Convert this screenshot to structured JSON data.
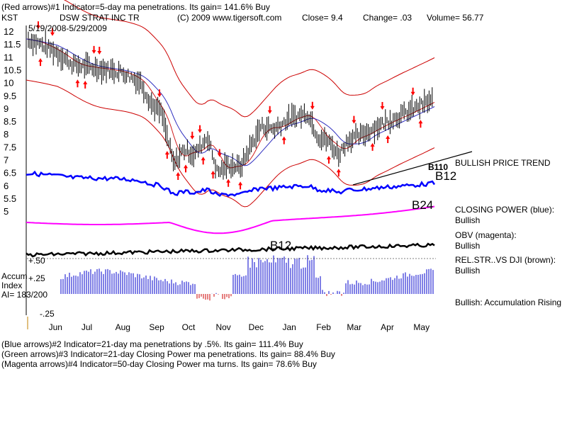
{
  "header": {
    "indicator1": "(Red arrows)#1 Indicator=5-day ma penetrations. Its gain= 141.6% Buy",
    "ticker": "KST",
    "stock": "DSW STRAT INC TR",
    "copyright": "(C) 2009 www.tigersoft.com",
    "close": "Close=  9.4",
    "change": "Change= .03",
    "volume": "Volume= 56.77",
    "date_range": "5/19/2008-5/29/2009"
  },
  "footer": {
    "line2": "(Blue arrows)#2 Indicator=21-day ma penetrations by .5%. Its gain= 111.4% Buy",
    "line3": "(Green arrows)#3 Indicator=21-day Closing Power ma penetrations. Its gain= 88.4% Buy",
    "line4": "(Magenta arrows)#4 Indicator=50-day Closing Power ma turns. Its gain= 78.6% Buy"
  },
  "panel": {
    "accum_title_1": "Accum",
    "accum_title_2": "Index",
    "ai": "AI= 183/200",
    "plus50": "+.50",
    "plus25": "+.25",
    "minus25": "-.25"
  },
  "annotations": {
    "bullish_price_trend": "BULLISH PRICE TREND",
    "closing_power": "CLOSING POWER (blue):",
    "closing_power_val": "Bullish",
    "obv": "OBV (magenta):",
    "obv_val": "Bullish",
    "relstr": "REL.STR..VS DJI (brown):",
    "relstr_val": "Bullish",
    "accum": "Bullish: Accumulation Rising",
    "b12_top": "B12",
    "b24": "B24",
    "b12_bottom": "B12",
    "b_overlap": "B110"
  },
  "colors": {
    "price": "#000000",
    "bands": "#cc0000",
    "ma": "#3030c0",
    "closing_power": "#0000ff",
    "obv": "#ff00ff",
    "relstr": "#000000",
    "accum_bars": "#0000cc",
    "sell_arrow": "#ff0000"
  },
  "chart_data": {
    "type": "line",
    "title": "DSW STRAT INC TR",
    "ylim": [
      4.6,
      12.3
    ],
    "yticks": [
      12,
      11.5,
      11,
      10.5,
      10,
      9.5,
      9,
      8.5,
      8,
      7.5,
      7,
      6.5,
      6,
      5.5,
      5
    ],
    "x_months": [
      "Jun",
      "Jul",
      "Aug",
      "Sep",
      "Oct",
      "Nov",
      "Dec",
      "Jan",
      "Feb",
      "Mar",
      "Apr",
      "May"
    ],
    "x": [
      "2008-05-19",
      "2008-06-01",
      "2008-06-15",
      "2008-07-01",
      "2008-07-15",
      "2008-08-01",
      "2008-08-15",
      "2008-09-01",
      "2008-09-10",
      "2008-09-20",
      "2008-10-01",
      "2008-10-10",
      "2008-10-20",
      "2008-11-01",
      "2008-11-10",
      "2008-11-20",
      "2008-12-01",
      "2008-12-10",
      "2008-12-20",
      "2009-01-01",
      "2009-01-15",
      "2009-02-01",
      "2009-02-10",
      "2009-02-20",
      "2009-03-01",
      "2009-03-10",
      "2009-03-20",
      "2009-04-01",
      "2009-04-15",
      "2009-05-01",
      "2009-05-15",
      "2009-05-29"
    ],
    "series": [
      {
        "values": [
          11.7,
          11.5,
          11.2,
          10.7,
          10.6,
          10.5,
          10.4,
          10.0,
          9.2,
          8.8,
          6.8,
          7.4,
          7.2,
          7.9,
          6.5,
          6.8,
          6.7,
          7.5,
          8.3,
          8.2,
          8.6,
          8.8,
          7.9,
          7.7,
          7.2,
          7.8,
          7.9,
          8.2,
          8.5,
          8.8,
          9.1,
          9.4
        ]
      }
    ],
    "buy_signals": [
      "B12",
      "B24",
      "B12"
    ]
  }
}
